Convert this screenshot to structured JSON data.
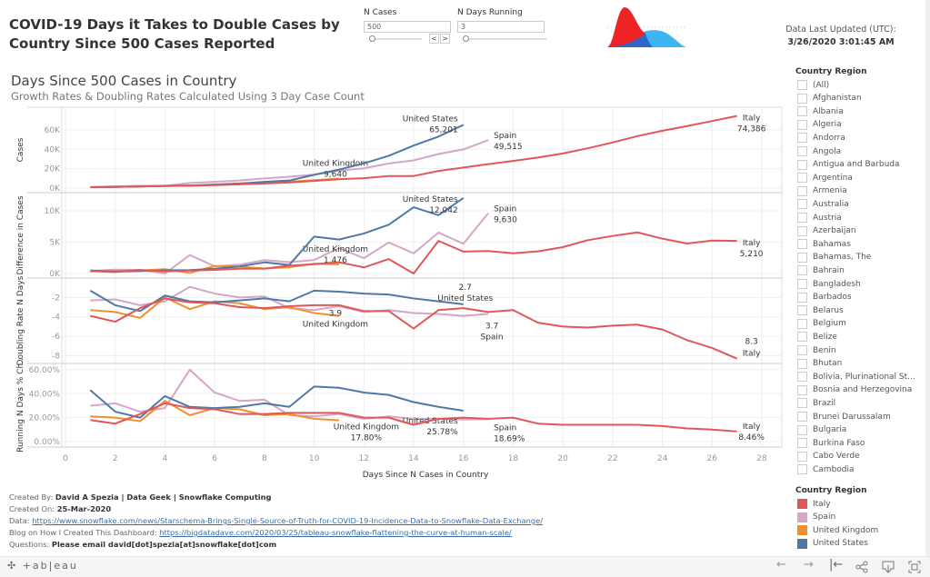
{
  "header": {
    "title": "COVID-19 Days it Takes to Double Cases by Country Since 500 Cases Reported",
    "n_cases": {
      "label": "N Cases",
      "value": "500",
      "prev": "<",
      "next": ">"
    },
    "n_days": {
      "label": "N Days Running",
      "value": "3"
    },
    "updated_label": "Data Last Updated (UTC):",
    "updated_value": "3/26/2020 3:01:45 AM"
  },
  "chart_title": "Days Since 500 Cases in Country",
  "chart_subtitle": "Growth Rates & Doubling Rates Calculated Using 3 Day Case Count",
  "chart_data": {
    "type": "line",
    "xlabel": "Days Since N Cases in Country",
    "xlim": [
      0,
      28
    ],
    "xticks": [
      "0",
      "2",
      "4",
      "6",
      "8",
      "10",
      "12",
      "14",
      "16",
      "18",
      "20",
      "22",
      "24",
      "26",
      "28"
    ],
    "grid": true,
    "colors": {
      "Italy": "#e15759",
      "Spain": "#d4a6c8",
      "United Kingdom": "#f28e2b",
      "United States": "#4e79a7"
    },
    "panels": [
      {
        "ylabel": "Cases",
        "unit": "K",
        "ylim": [
          -4.7,
          83.4
        ],
        "yticks": [
          {
            "v": 0,
            "t": "0K"
          },
          {
            "v": 20,
            "t": "20K"
          },
          {
            "v": 40,
            "t": "40K"
          },
          {
            "v": 60,
            "t": "60K"
          }
        ],
        "series": [
          {
            "name": "Italy",
            "values": [
              0.89,
              1.13,
              1.69,
              2.04,
              2.5,
              3.09,
              3.86,
              4.64,
              5.88,
              7.38,
              9.17,
              10.15,
              12.46,
              12.46,
              17.66,
              21.16,
              24.75,
              27.98,
              31.51,
              35.71,
              41.04,
              47.02,
              53.58,
              59.14,
              63.93,
              69.18,
              74.39
            ],
            "label": "74,386"
          },
          {
            "name": "Spain",
            "values": [
              1.07,
              1.69,
              2.28,
              2.28,
              5.23,
              6.39,
              7.8,
              9.94,
              11.75,
              13.91,
              17.96,
              20.41,
              25.37,
              28.6,
              35.14,
              39.89,
              49.52
            ],
            "label": "49,515"
          },
          {
            "name": "United Kingdom",
            "values": [
              0.8,
              1.2,
              1.7,
              2.4,
              2.5,
              3.7,
              4.8,
              5.6,
              6.6,
              8.16,
              9.64
            ],
            "label": "9,640"
          },
          {
            "name": "United States",
            "values": [
              0.96,
              1.28,
              1.66,
              2.18,
              2.73,
              3.5,
              4.63,
              6.42,
              7.79,
              13.68,
              19.1,
              25.49,
              33.28,
              43.85,
              53.16,
              65.2
            ],
            "label": "65,201"
          }
        ]
      },
      {
        "ylabel": "Difference in Cases",
        "unit": "K",
        "ylim": [
          -0.72,
          12.9
        ],
        "yticks": [
          {
            "v": 0,
            "t": "0K"
          },
          {
            "v": 5,
            "t": "5K"
          },
          {
            "v": 10,
            "t": "10K"
          }
        ],
        "series": [
          {
            "name": "Italy",
            "values": [
              0.39,
              0.24,
              0.56,
              0.34,
              0.47,
              0.59,
              0.77,
              0.78,
              1.25,
              1.49,
              1.8,
              0.98,
              2.31,
              0.0,
              5.2,
              3.5,
              3.59,
              3.23,
              3.53,
              4.21,
              5.32,
              5.99,
              6.56,
              5.56,
              4.79,
              5.25,
              5.21
            ],
            "label": "5,210"
          },
          {
            "name": "Spain",
            "values": [
              0.4,
              0.62,
              0.58,
              0.0,
              2.95,
              1.16,
              1.41,
              2.14,
              1.81,
              2.16,
              4.05,
              2.45,
              4.96,
              3.23,
              6.53,
              4.75,
              9.63
            ],
            "label": "9,630"
          },
          {
            "name": "United Kingdom",
            "values": [
              0.35,
              0.4,
              0.5,
              0.7,
              0.1,
              1.2,
              1.1,
              0.8,
              1.0,
              1.56,
              1.48
            ],
            "label": "1,476"
          },
          {
            "name": "United States",
            "values": [
              0.5,
              0.32,
              0.38,
              0.52,
              0.55,
              0.77,
              1.13,
              1.79,
              1.37,
              5.89,
              5.42,
              6.39,
              7.79,
              10.57,
              9.31,
              12.04
            ],
            "label": "12,042"
          }
        ]
      },
      {
        "ylabel": "Doubling Rate N Days",
        "unit": "",
        "ylim": [
          -8.8,
          0
        ],
        "yticks": [
          {
            "v": -2,
            "t": "-2"
          },
          {
            "v": -4,
            "t": "-4"
          },
          {
            "v": -6,
            "t": "-6"
          },
          {
            "v": -8,
            "t": "-8"
          }
        ],
        "series": [
          {
            "name": "Italy",
            "values": [
              -3.9,
              -4.5,
              -3.1,
              -2.1,
              -2.5,
              -2.6,
              -3.0,
              -3.1,
              -2.9,
              -2.8,
              -2.8,
              -3.4,
              -3.4,
              -5.2,
              -3.3,
              -3.1,
              -3.5,
              -3.3,
              -4.6,
              -5.0,
              -5.1,
              -4.9,
              -4.8,
              -5.3,
              -6.4,
              -7.2,
              -8.3
            ],
            "label": "8.3"
          },
          {
            "name": "Spain",
            "values": [
              -2.3,
              -2.2,
              -2.8,
              -2.4,
              -0.9,
              -1.6,
              -2.0,
              -1.9,
              -3.1,
              -3.3,
              -2.9,
              -3.5,
              -3.3,
              -3.6,
              -3.7,
              -3.9,
              -3.7
            ],
            "label": "3.7"
          },
          {
            "name": "United Kingdom",
            "values": [
              -3.3,
              -3.5,
              -4.1,
              -2.0,
              -3.2,
              -2.4,
              -2.6,
              -3.2,
              -3.0,
              -3.6,
              -3.9
            ],
            "label": "3.9"
          },
          {
            "name": "United States",
            "values": [
              -1.3,
              -2.8,
              -3.4,
              -1.8,
              -2.4,
              -2.5,
              -2.3,
              -2.1,
              -2.4,
              -1.3,
              -1.4,
              -1.6,
              -1.7,
              -2.1,
              -2.4,
              -2.7
            ],
            "label": "2.7"
          }
        ]
      },
      {
        "ylabel": "Running N Days % Ch..",
        "unit": "%",
        "ylim": [
          -4.6,
          65.3
        ],
        "yticks": [
          {
            "v": 0,
            "t": "0.00%"
          },
          {
            "v": 20,
            "t": "20.00%"
          },
          {
            "v": 40,
            "t": "40.00%"
          },
          {
            "v": 60,
            "t": "60.00%"
          }
        ],
        "series": [
          {
            "name": "Italy",
            "values": [
              18,
              15,
              23,
              32,
              28,
              27,
              23,
              23,
              24,
              24,
              24,
              20,
              20,
              14,
              19,
              20,
              19,
              20,
              15,
              14,
              14,
              14,
              14,
              13,
              11,
              10,
              8.46
            ],
            "label": "8.46%"
          },
          {
            "name": "Spain",
            "values": [
              30,
              32,
              25,
              28,
              60,
              41,
              34,
              35,
              22,
              21,
              23,
              19,
              21,
              19,
              19,
              18.5,
              18.69
            ],
            "label": "18.69%"
          },
          {
            "name": "United Kingdom",
            "values": [
              21,
              20,
              17,
              34,
              22,
              28,
              27,
              22,
              23,
              19,
              17.8
            ],
            "label": "17.80%"
          },
          {
            "name": "United States",
            "values": [
              43,
              25,
              20,
              38,
              29,
              28,
              29,
              32,
              29,
              46,
              45,
              41,
              39,
              33,
              29,
              25.78
            ],
            "label": "25.78%"
          }
        ]
      }
    ]
  },
  "filter": {
    "title": "Country Region",
    "items": [
      "(All)",
      "Afghanistan",
      "Albania",
      "Algeria",
      "Andorra",
      "Angola",
      "Antigua and Barbuda",
      "Argentina",
      "Armenia",
      "Australia",
      "Austria",
      "Azerbaijan",
      "Bahamas",
      "Bahamas, The",
      "Bahrain",
      "Bangladesh",
      "Barbados",
      "Belarus",
      "Belgium",
      "Belize",
      "Benin",
      "Bhutan",
      "Bolivia, Plurinational St...",
      "Bosnia and Herzegovina",
      "Brazil",
      "Brunei Darussalam",
      "Bulgaria",
      "Burkina Faso",
      "Cabo Verde",
      "Cambodia"
    ]
  },
  "legend": {
    "title": "Country Region",
    "items": [
      {
        "name": "Italy",
        "color": "#e15759"
      },
      {
        "name": "Spain",
        "color": "#d4a6c8"
      },
      {
        "name": "United Kingdom",
        "color": "#f28e2b"
      },
      {
        "name": "United States",
        "color": "#4e79a7"
      }
    ]
  },
  "footer": {
    "created_by_label": "Created By:",
    "created_by": "David A Spezia | Data Geek | Snowflake Computing",
    "created_on_label": "Created On:",
    "created_on": "25-Mar-2020",
    "data_label": "Data:",
    "data_url": "https://www.snowflake.com/news/Starschema-Brings-Single-Source-of-Truth-for-COVID-19-Incidence-Data-to-Snowflake-Data-Exchange/",
    "blog_label": "Blog on How I Created This Dashboard:",
    "blog_url": "https://bigdatadave.com/2020/03/25/tableau-snowflake-flattening-the-curve-at-human-scale/",
    "questions_label": "Questions:",
    "questions": "Please email david[dot]spezia[at]snowflake[dot]com"
  },
  "toolbar": {
    "logo": "+ab|eau",
    "undo": "←",
    "redo": "→",
    "revert": "|←",
    "share": "share",
    "download": "download",
    "fullscreen": "fullscreen"
  }
}
